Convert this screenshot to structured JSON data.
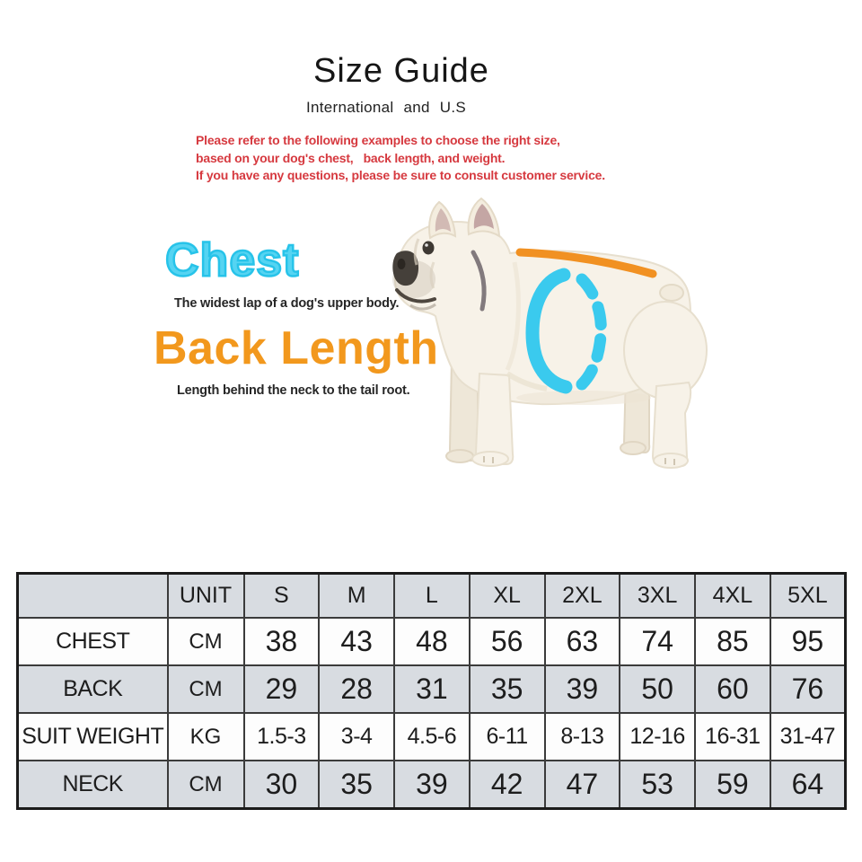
{
  "header": {
    "title": "Size Guide",
    "subtitle": "International and U.S",
    "notice_color": "#d6393f",
    "notice_lines": [
      "Please refer to the following examples to choose the right size,",
      "based on your dog's chest,   back length, and weight.",
      "If you have any questions, please be sure to consult customer service."
    ]
  },
  "measure_guide": {
    "chest": {
      "label": "Chest",
      "color": "#27c3e9",
      "description": "The widest lap of a dog's upper body."
    },
    "back_length": {
      "label": "Back Length",
      "color": "#f2981d",
      "description": "Length behind the neck to the tail root."
    },
    "chest_band_color": "#3acaee",
    "back_line_color": "#f19122",
    "dog_alt": "white french bulldog, side view facing left"
  },
  "size_table": {
    "columns": [
      "",
      "UNIT",
      "S",
      "M",
      "L",
      "XL",
      "2XL",
      "3XL",
      "4XL",
      "5XL"
    ],
    "header_bg": "#d8dce1",
    "row_alt_bg": "#d8dce1",
    "border_color": "#3b3b3b",
    "rows": [
      {
        "label": "CHEST",
        "unit": "CM",
        "values": [
          "38",
          "43",
          "48",
          "56",
          "63",
          "74",
          "85",
          "95"
        ]
      },
      {
        "label": "BACK",
        "unit": "CM",
        "values": [
          "29",
          "28",
          "31",
          "35",
          "39",
          "50",
          "60",
          "76"
        ]
      },
      {
        "label": "SUIT WEIGHT",
        "unit": "KG",
        "values": [
          "1.5-3",
          "3-4",
          "4.5-6",
          "6-11",
          "8-13",
          "12-16",
          "16-31",
          "31-47"
        ]
      },
      {
        "label": "NECK",
        "unit": "CM",
        "values": [
          "30",
          "35",
          "39",
          "42",
          "47",
          "53",
          "59",
          "64"
        ]
      }
    ]
  }
}
